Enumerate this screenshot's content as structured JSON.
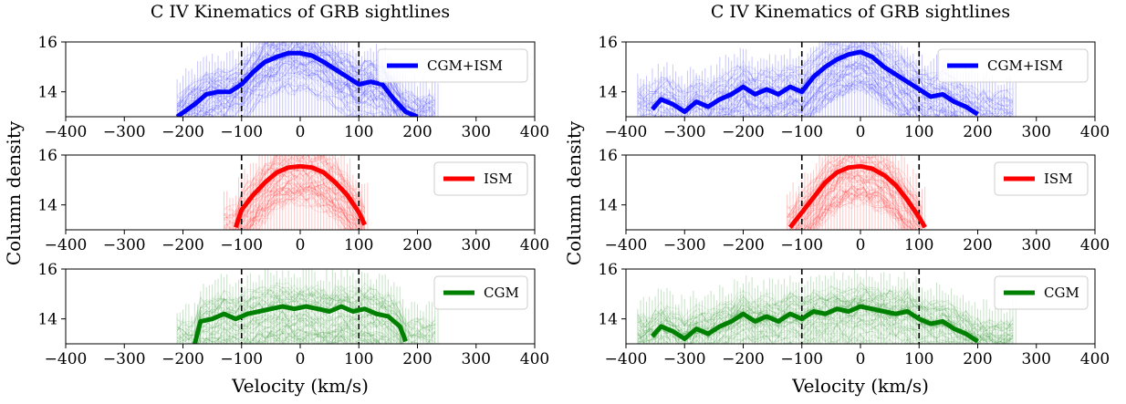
{
  "colors": {
    "cgm_ism": "#0000ff",
    "ism": "#ff0000",
    "cgm": "#008000"
  },
  "chart_data": [
    {
      "type": "line",
      "title": "C IV Kinematics of GRB sightlines",
      "ylabel": "Column density",
      "xlabel": "Velocity (km/s)",
      "xlim": [
        -400,
        400
      ],
      "ylim": [
        13,
        16
      ],
      "xticks": [
        "−400",
        "−300",
        "−200",
        "−100",
        "0",
        "100",
        "200",
        "300",
        "400"
      ],
      "yticks": [
        "14",
        "16"
      ],
      "reference_lines_x": [
        -100,
        100
      ],
      "panels": [
        {
          "legend": "CGM+ISM",
          "color": "#0000ff",
          "band": [
            -210,
            235
          ],
          "x": [
            -210,
            -180,
            -160,
            -140,
            -120,
            -100,
            -80,
            -60,
            -40,
            -20,
            0,
            20,
            40,
            60,
            80,
            100,
            120,
            140,
            160,
            180,
            200
          ],
          "y": [
            13.0,
            13.5,
            13.9,
            14.0,
            14.0,
            14.3,
            14.8,
            15.2,
            15.4,
            15.55,
            15.55,
            15.45,
            15.2,
            14.9,
            14.6,
            14.3,
            14.4,
            14.3,
            13.7,
            13.2,
            13.0
          ]
        },
        {
          "legend": "ISM",
          "color": "#ff0000",
          "band": [
            -130,
            115
          ],
          "x": [
            -110,
            -100,
            -80,
            -60,
            -40,
            -20,
            0,
            20,
            40,
            60,
            80,
            100,
            110
          ],
          "y": [
            13.1,
            13.8,
            14.4,
            14.9,
            15.3,
            15.5,
            15.55,
            15.5,
            15.3,
            14.9,
            14.4,
            13.7,
            13.2
          ]
        },
        {
          "legend": "CGM",
          "color": "#008000",
          "band": [
            -210,
            235
          ],
          "x": [
            -180,
            -170,
            -150,
            -130,
            -110,
            -90,
            -70,
            -50,
            -30,
            -10,
            10,
            30,
            50,
            70,
            90,
            110,
            130,
            150,
            170,
            180
          ],
          "y": [
            13.0,
            13.9,
            14.0,
            14.2,
            14.0,
            14.2,
            14.3,
            14.4,
            14.5,
            14.4,
            14.5,
            14.4,
            14.3,
            14.5,
            14.3,
            14.4,
            14.2,
            14.1,
            13.7,
            13.1
          ]
        }
      ]
    },
    {
      "type": "line",
      "title": "C IV Kinematics of GRB sightlines",
      "ylabel": "Column density",
      "xlabel": "Velocity (km/s)",
      "xlim": [
        -400,
        400
      ],
      "ylim": [
        13,
        16
      ],
      "xticks": [
        "−400",
        "−300",
        "−200",
        "−100",
        "0",
        "100",
        "200",
        "300",
        "400"
      ],
      "yticks": [
        "14",
        "16"
      ],
      "reference_lines_x": [
        -100,
        100
      ],
      "panels": [
        {
          "legend": "CGM+ISM",
          "color": "#0000ff",
          "band": [
            -380,
            265
          ],
          "x": [
            -355,
            -340,
            -320,
            -300,
            -280,
            -260,
            -240,
            -220,
            -200,
            -180,
            -160,
            -140,
            -120,
            -100,
            -80,
            -60,
            -40,
            -20,
            0,
            20,
            40,
            60,
            80,
            100,
            120,
            140,
            160,
            180,
            200
          ],
          "y": [
            13.3,
            13.7,
            13.5,
            13.2,
            13.6,
            13.4,
            13.7,
            13.9,
            14.2,
            13.9,
            14.1,
            13.9,
            14.2,
            14.0,
            14.6,
            15.0,
            15.3,
            15.5,
            15.6,
            15.4,
            15.0,
            14.7,
            14.4,
            14.1,
            13.8,
            13.9,
            13.6,
            13.4,
            13.1
          ]
        },
        {
          "legend": "ISM",
          "color": "#ff0000",
          "band": [
            -125,
            110
          ],
          "x": [
            -120,
            -100,
            -80,
            -60,
            -40,
            -20,
            0,
            20,
            40,
            60,
            80,
            100,
            110
          ],
          "y": [
            13.1,
            13.7,
            14.3,
            14.9,
            15.3,
            15.5,
            15.55,
            15.45,
            15.2,
            14.8,
            14.2,
            13.5,
            13.1
          ]
        },
        {
          "legend": "CGM",
          "color": "#008000",
          "band": [
            -380,
            265
          ],
          "x": [
            -355,
            -340,
            -320,
            -300,
            -280,
            -260,
            -240,
            -220,
            -200,
            -180,
            -160,
            -140,
            -120,
            -100,
            -80,
            -60,
            -40,
            -20,
            0,
            20,
            40,
            60,
            80,
            100,
            120,
            140,
            160,
            180,
            200
          ],
          "y": [
            13.3,
            13.7,
            13.5,
            13.2,
            13.6,
            13.4,
            13.7,
            13.9,
            14.2,
            13.9,
            14.1,
            13.9,
            14.2,
            14.0,
            14.3,
            14.2,
            14.4,
            14.3,
            14.5,
            14.4,
            14.3,
            14.2,
            14.3,
            14.0,
            13.8,
            13.9,
            13.6,
            13.4,
            13.1
          ]
        }
      ]
    }
  ]
}
